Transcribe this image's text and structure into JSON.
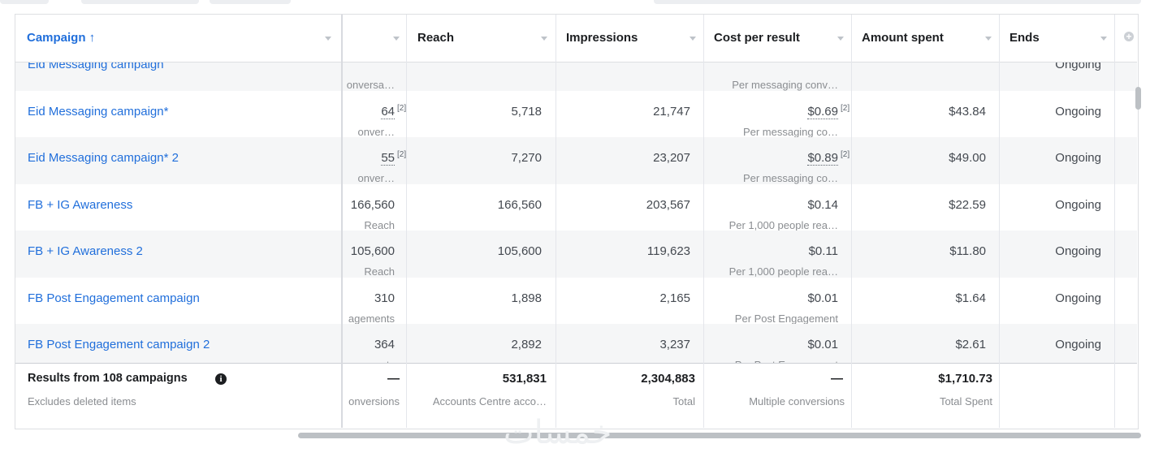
{
  "table": {
    "columns": [
      "Campaign ↑",
      "Reach",
      "Impressions",
      "Cost per result",
      "Amount spent",
      "Ends"
    ],
    "rows": [
      {
        "name": "Eid Messaging campaign",
        "results_sub": "onversa…",
        "cost_sub": "Per messaging conv…",
        "ends": "Ongoing"
      },
      {
        "name": "Eid Messaging campaign*",
        "results": "64",
        "results_note": "[2]",
        "results_sub": "onver…",
        "reach": "5,718",
        "impressions": "21,747",
        "cost": "$0.69",
        "cost_note": "[2]",
        "cost_sub": "Per messaging co…",
        "amount": "$43.84",
        "ends": "Ongoing"
      },
      {
        "name": "Eid Messaging campaign* 2",
        "results": "55",
        "results_note": "[2]",
        "results_sub": "onver…",
        "reach": "7,270",
        "impressions": "23,207",
        "cost": "$0.89",
        "cost_note": "[2]",
        "cost_sub": "Per messaging co…",
        "amount": "$49.00",
        "ends": "Ongoing"
      },
      {
        "name": "FB + IG Awareness",
        "results": "166,560",
        "results_sub": "Reach",
        "reach": "166,560",
        "impressions": "203,567",
        "cost": "$0.14",
        "cost_sub": "Per 1,000 people rea…",
        "amount": "$22.59",
        "ends": "Ongoing"
      },
      {
        "name": "FB + IG Awareness 2",
        "results": "105,600",
        "results_sub": "Reach",
        "reach": "105,600",
        "impressions": "119,623",
        "cost": "$0.11",
        "cost_sub": "Per 1,000 people rea…",
        "amount": "$11.80",
        "ends": "Ongoing"
      },
      {
        "name": "FB Post Engagement campaign",
        "results": "310",
        "results_sub": "agements",
        "reach": "1,898",
        "impressions": "2,165",
        "cost": "$0.01",
        "cost_sub": "Per Post Engagement",
        "amount": "$1.64",
        "ends": "Ongoing"
      },
      {
        "name": "FB Post Engagement campaign 2",
        "results": "364",
        "results_sub": "agements",
        "reach": "2,892",
        "impressions": "3,237",
        "cost": "$0.01",
        "cost_sub": "Per Post Engagement",
        "amount": "$2.61",
        "ends": "Ongoing"
      }
    ],
    "footer": {
      "name": "Results from 108 campaigns",
      "name_sub": "Excludes deleted items",
      "results": "—",
      "results_sub": "onversions",
      "reach": "531,831",
      "reach_sub": "Accounts Centre acco…",
      "impressions": "2,304,883",
      "impressions_sub": "Total",
      "cost": "—",
      "cost_sub": "Multiple conversions",
      "amount": "$1,710.73",
      "amount_sub": "Total Spent"
    }
  },
  "watermark": "خمسات"
}
